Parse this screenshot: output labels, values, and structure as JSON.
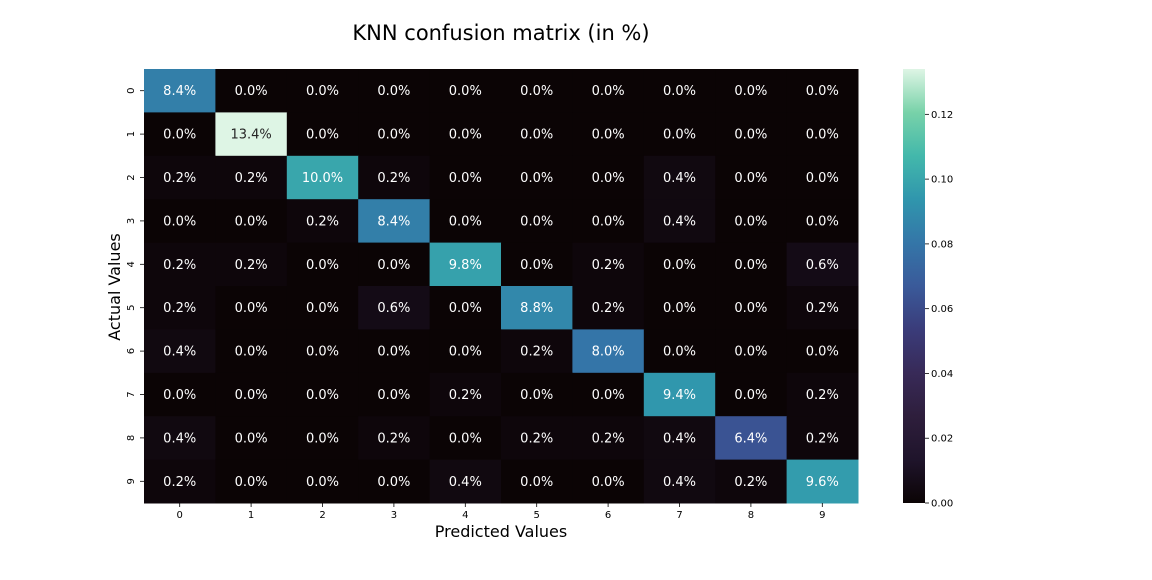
{
  "chart_data": {
    "type": "heatmap",
    "title": "KNN confusion matrix (in %)",
    "xlabel": "Predicted Values",
    "ylabel": "Actual Values",
    "x_categories": [
      "0",
      "1",
      "2",
      "3",
      "4",
      "5",
      "6",
      "7",
      "8",
      "9"
    ],
    "y_categories": [
      "0",
      "1",
      "2",
      "3",
      "4",
      "5",
      "6",
      "7",
      "8",
      "9"
    ],
    "values": [
      [
        0.084,
        0.0,
        0.0,
        0.0,
        0.0,
        0.0,
        0.0,
        0.0,
        0.0,
        0.0
      ],
      [
        0.0,
        0.134,
        0.0,
        0.0,
        0.0,
        0.0,
        0.0,
        0.0,
        0.0,
        0.0
      ],
      [
        0.002,
        0.002,
        0.1,
        0.002,
        0.0,
        0.0,
        0.0,
        0.004,
        0.0,
        0.0
      ],
      [
        0.0,
        0.0,
        0.002,
        0.084,
        0.0,
        0.0,
        0.0,
        0.004,
        0.0,
        0.0
      ],
      [
        0.002,
        0.002,
        0.0,
        0.0,
        0.098,
        0.0,
        0.002,
        0.0,
        0.0,
        0.006
      ],
      [
        0.002,
        0.0,
        0.0,
        0.006,
        0.0,
        0.088,
        0.002,
        0.0,
        0.0,
        0.002
      ],
      [
        0.004,
        0.0,
        0.0,
        0.0,
        0.0,
        0.002,
        0.08,
        0.0,
        0.0,
        0.0
      ],
      [
        0.0,
        0.0,
        0.0,
        0.0,
        0.002,
        0.0,
        0.0,
        0.094,
        0.0,
        0.002
      ],
      [
        0.004,
        0.0,
        0.0,
        0.002,
        0.0,
        0.002,
        0.002,
        0.004,
        0.064,
        0.002
      ],
      [
        0.002,
        0.0,
        0.0,
        0.0,
        0.004,
        0.0,
        0.0,
        0.004,
        0.002,
        0.096
      ]
    ],
    "annotations": [
      [
        "8.4%",
        "0.0%",
        "0.0%",
        "0.0%",
        "0.0%",
        "0.0%",
        "0.0%",
        "0.0%",
        "0.0%",
        "0.0%"
      ],
      [
        "0.0%",
        "13.4%",
        "0.0%",
        "0.0%",
        "0.0%",
        "0.0%",
        "0.0%",
        "0.0%",
        "0.0%",
        "0.0%"
      ],
      [
        "0.2%",
        "0.2%",
        "10.0%",
        "0.2%",
        "0.0%",
        "0.0%",
        "0.0%",
        "0.4%",
        "0.0%",
        "0.0%"
      ],
      [
        "0.0%",
        "0.0%",
        "0.2%",
        "8.4%",
        "0.0%",
        "0.0%",
        "0.0%",
        "0.4%",
        "0.0%",
        "0.0%"
      ],
      [
        "0.2%",
        "0.2%",
        "0.0%",
        "0.0%",
        "9.8%",
        "0.0%",
        "0.2%",
        "0.0%",
        "0.0%",
        "0.6%"
      ],
      [
        "0.2%",
        "0.0%",
        "0.0%",
        "0.6%",
        "0.0%",
        "8.8%",
        "0.2%",
        "0.0%",
        "0.0%",
        "0.2%"
      ],
      [
        "0.4%",
        "0.0%",
        "0.0%",
        "0.0%",
        "0.0%",
        "0.2%",
        "8.0%",
        "0.0%",
        "0.0%",
        "0.0%"
      ],
      [
        "0.0%",
        "0.0%",
        "0.0%",
        "0.0%",
        "0.2%",
        "0.0%",
        "0.0%",
        "9.4%",
        "0.0%",
        "0.2%"
      ],
      [
        "0.4%",
        "0.0%",
        "0.0%",
        "0.2%",
        "0.0%",
        "0.2%",
        "0.2%",
        "0.4%",
        "6.4%",
        "0.2%"
      ],
      [
        "0.2%",
        "0.0%",
        "0.0%",
        "0.0%",
        "0.4%",
        "0.0%",
        "0.0%",
        "0.4%",
        "0.2%",
        "9.6%"
      ]
    ],
    "colorbar": {
      "range": [
        0,
        0.134
      ],
      "ticks": [
        0.0,
        0.02,
        0.04,
        0.06,
        0.08,
        0.1,
        0.12
      ],
      "tick_labels": [
        "0.00",
        "0.02",
        "0.04",
        "0.06",
        "0.08",
        "0.10",
        "0.12"
      ],
      "colormap": "mako",
      "stops": [
        {
          "v": 0.0,
          "color": "#0b0405"
        },
        {
          "v": 0.1,
          "color": "#1f142b"
        },
        {
          "v": 0.2,
          "color": "#2e1e3c"
        },
        {
          "v": 0.3,
          "color": "#382a58"
        },
        {
          "v": 0.4,
          "color": "#3a3c7a"
        },
        {
          "v": 0.5,
          "color": "#3a5a9a"
        },
        {
          "v": 0.6,
          "color": "#3476a8"
        },
        {
          "v": 0.7,
          "color": "#3096ad"
        },
        {
          "v": 0.8,
          "color": "#43b8ab"
        },
        {
          "v": 0.9,
          "color": "#78d2a9"
        },
        {
          "v": 1.0,
          "color": "#def5e5"
        }
      ]
    },
    "grid": false
  }
}
